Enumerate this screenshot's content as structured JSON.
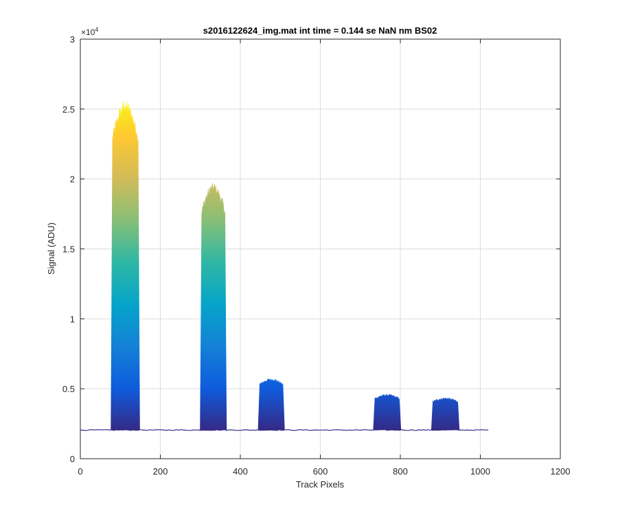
{
  "chart_data": {
    "type": "area",
    "title": "s2016122624_img.mat int time = 0.144 se  NaN nm BS02",
    "xlabel": "Track Pixels",
    "ylabel": "Signal (ADU)",
    "xlim": [
      0,
      1200
    ],
    "ylim": [
      0,
      30000
    ],
    "x_ticks": [
      0,
      200,
      400,
      600,
      800,
      1000,
      1200
    ],
    "y_ticks": [
      0,
      0.5,
      1,
      1.5,
      2,
      2.5,
      3
    ],
    "y_tick_labels": [
      "0",
      "0.5",
      "1",
      "1.5",
      "2",
      "2.5",
      "3"
    ],
    "y_exponent_base": "×10",
    "y_exponent_power": "4",
    "grid": true,
    "colormap": "parula",
    "colormap_stops": [
      "#352a87",
      "#0f5cdd",
      "#1481d6",
      "#06a4ca",
      "#2eb7a4",
      "#87bf77",
      "#d1bb59",
      "#fec832",
      "#f9fb0e"
    ],
    "x_data_max": 1024,
    "baseline": 2050,
    "series": [
      {
        "x_start": 80,
        "x_end": 145,
        "peak": 26000
      },
      {
        "x_start": 303,
        "x_end": 362,
        "peak": 20000
      },
      {
        "x_start": 448,
        "x_end": 507,
        "peak": 5800
      },
      {
        "x_start": 736,
        "x_end": 798,
        "peak": 4650
      },
      {
        "x_start": 881,
        "x_end": 944,
        "peak": 4400
      }
    ]
  }
}
